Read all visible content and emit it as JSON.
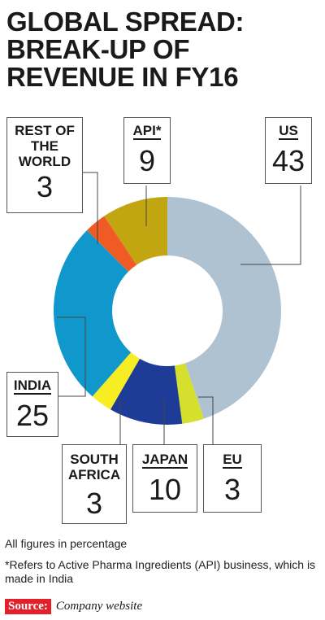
{
  "title_lines": [
    "GLOBAL SPREAD:",
    "BREAK-UP OF",
    "REVENUE IN FY16"
  ],
  "chart_data": {
    "type": "pie",
    "donut": true,
    "title": "GLOBAL SPREAD: BREAK-UP OF REVENUE IN FY16",
    "unit": "%",
    "slices": [
      {
        "name": "US",
        "value": 43,
        "color": "#afc2d1"
      },
      {
        "name": "EU",
        "value": 3,
        "color": "#d5df2d"
      },
      {
        "name": "JAPAN",
        "value": 10,
        "color": "#1f3b98"
      },
      {
        "name": "SOUTH AFRICA",
        "value": 3,
        "color": "#f6ee22"
      },
      {
        "name": "INDIA",
        "value": 25,
        "color": "#1098cd"
      },
      {
        "name": "REST OF THE WORLD",
        "value": 3,
        "color": "#f05a24"
      },
      {
        "name": "API*",
        "value": 9,
        "color": "#c2a611"
      }
    ]
  },
  "labels": {
    "us": {
      "name": "US",
      "value": "43"
    },
    "api": {
      "name": "API*",
      "value": "9"
    },
    "rest": {
      "name": "REST OF\nTHE\nWORLD",
      "value": "3"
    },
    "india": {
      "name": "INDIA",
      "value": "25"
    },
    "south_africa": {
      "name": "SOUTH\nAFRICA",
      "value": "3"
    },
    "japan": {
      "name": "JAPAN",
      "value": "10"
    },
    "eu": {
      "name": "EU",
      "value": "3"
    }
  },
  "notes": {
    "units": "All figures in percentage",
    "api_note": "*Refers to Active Pharma Ingredients (API) business, which is made in India"
  },
  "source": {
    "tag": "Source:",
    "text": "Company website"
  }
}
